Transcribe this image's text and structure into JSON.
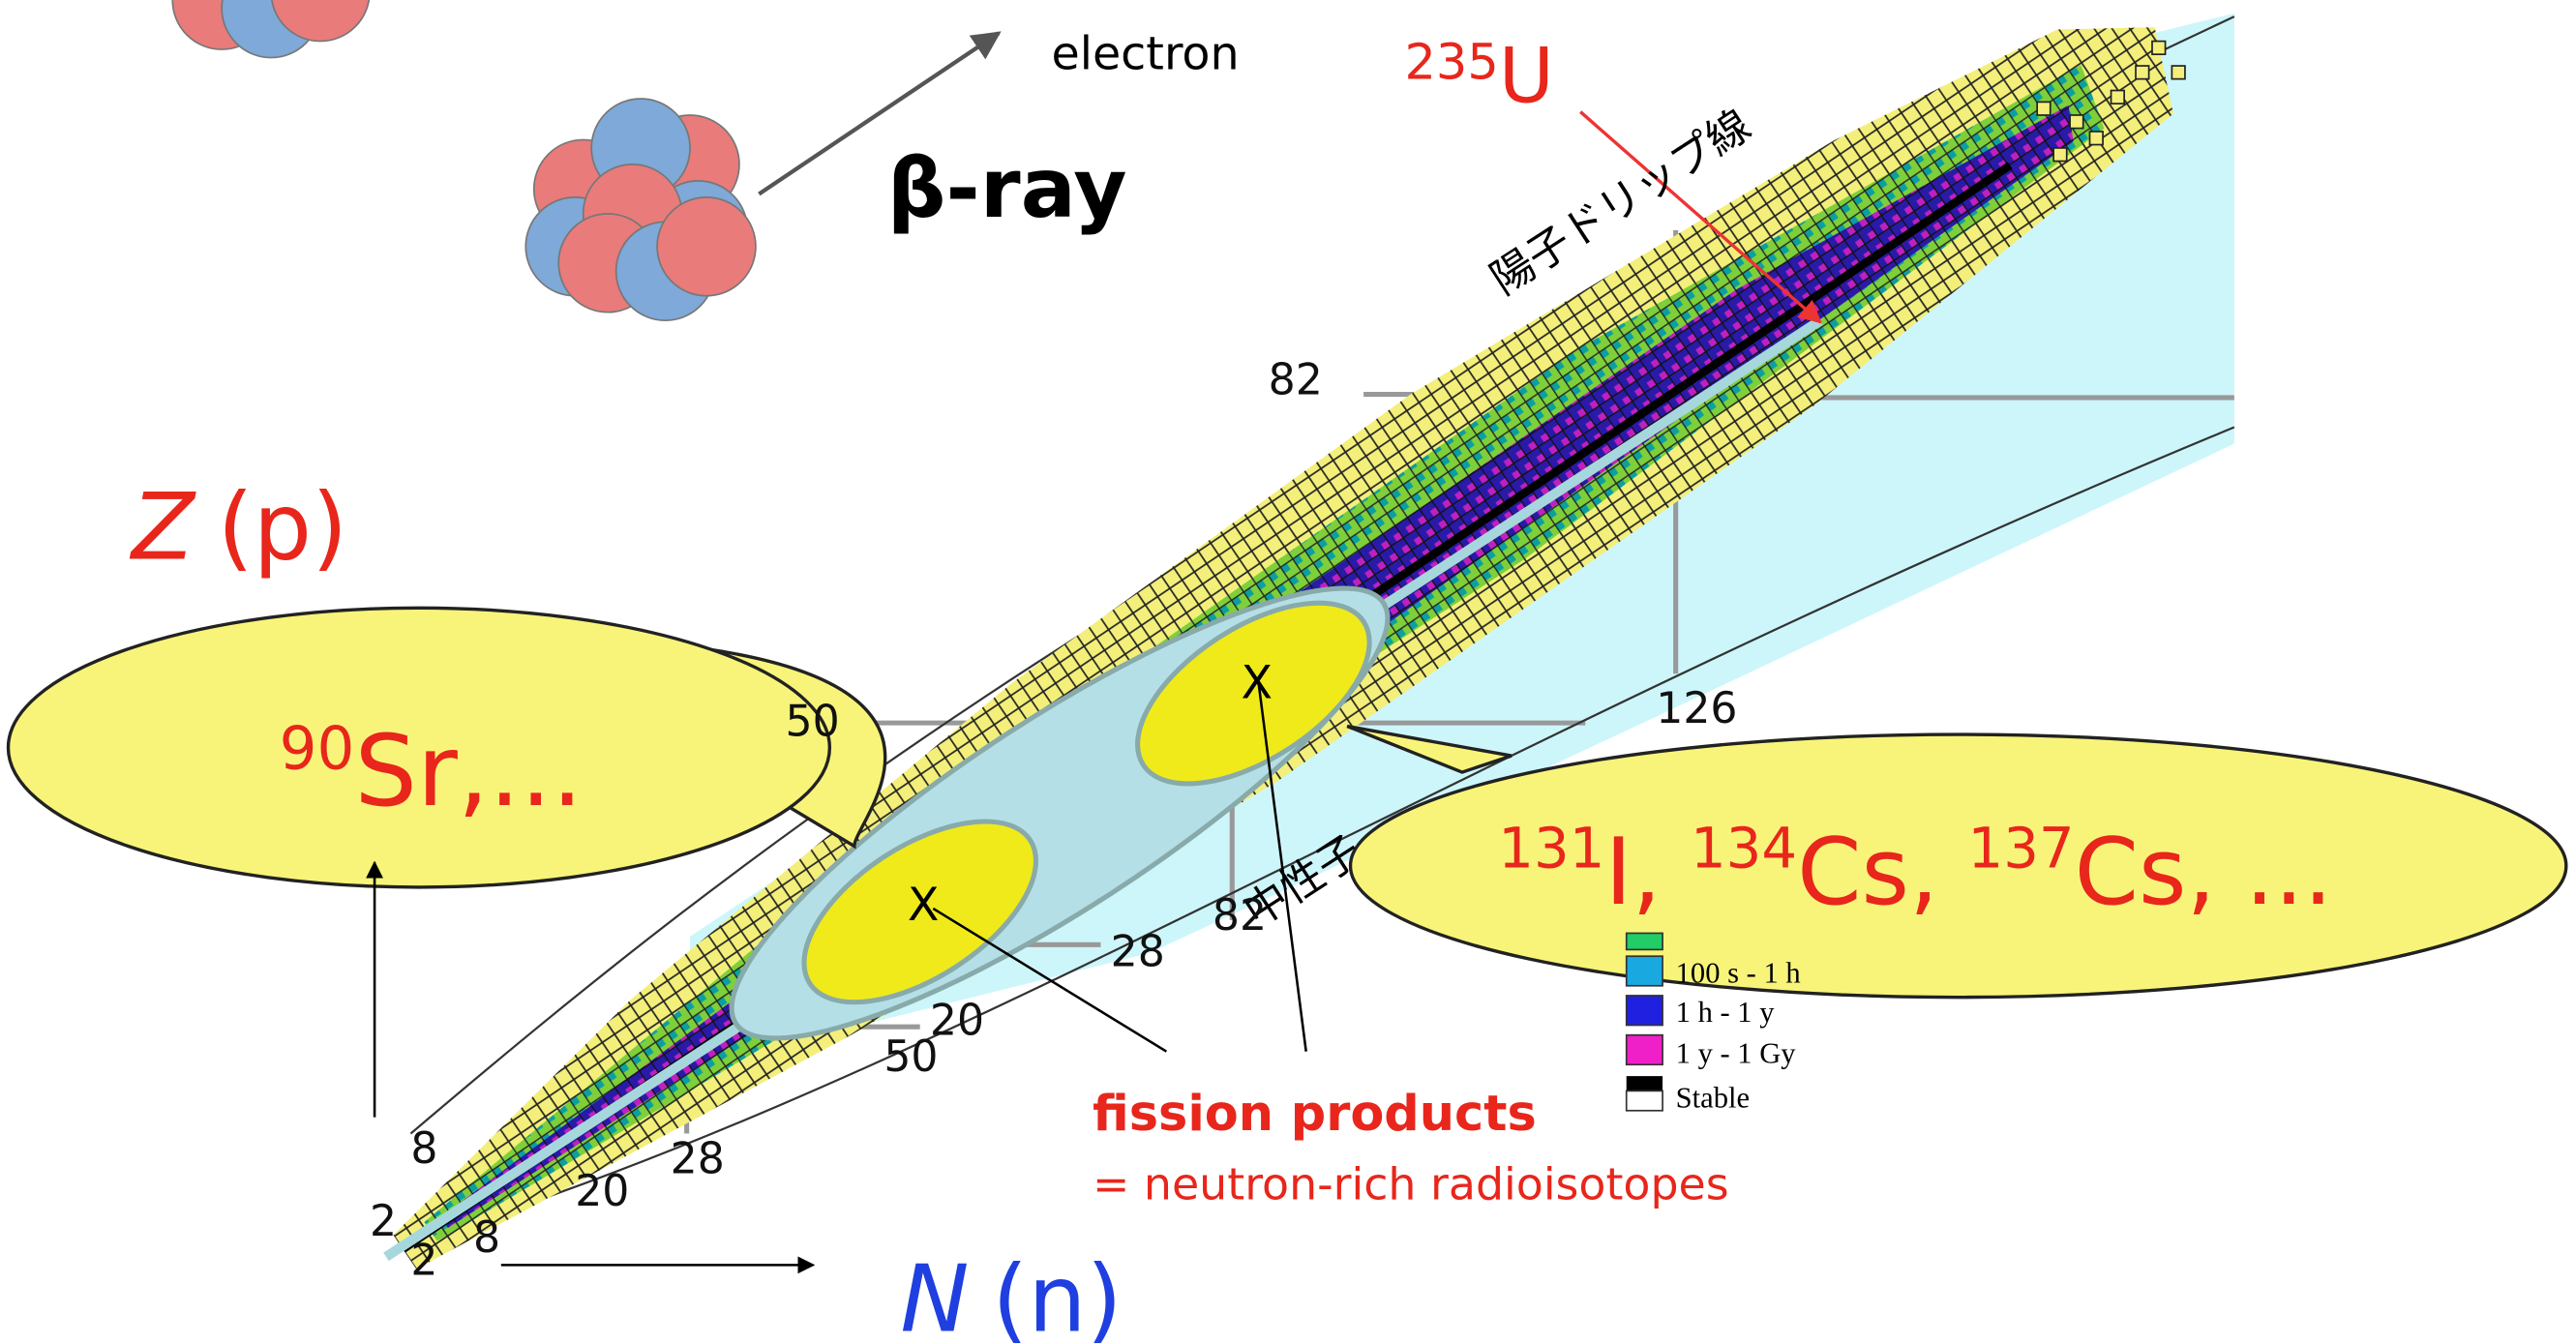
{
  "beta_panel": {
    "electron_label": "electron",
    "ray_label": "β-ray"
  },
  "uranium": {
    "mass": "235",
    "symbol": "U"
  },
  "drip_line_label": "陽子ドリップ線",
  "neutron_label": "中性子",
  "axes": {
    "z_label": {
      "symbol": "Z",
      "particle": "(p)"
    },
    "n_label": {
      "symbol": "N",
      "particle": "(n)"
    }
  },
  "magic_numbers": [
    "82",
    "50",
    "126",
    "82",
    "28",
    "20",
    "50",
    "8",
    "28",
    "20",
    "2",
    "8",
    "2"
  ],
  "bubbles": {
    "left": {
      "mass": "90",
      "text": "Sr,..."
    },
    "right": {
      "parts": [
        {
          "mass": "131",
          "text": "I, "
        },
        {
          "mass": "134",
          "text": "Cs, "
        },
        {
          "mass": "137",
          "text": "Cs, ..."
        }
      ]
    }
  },
  "markers": [
    "X",
    "X"
  ],
  "fission": {
    "title": "fission products",
    "subtitle": "= neutron-rich radioisotopes"
  },
  "legend": [
    "100 s - 1 h",
    "1 h - 1 y",
    "1 y - 1 Gy",
    "Stable"
  ]
}
